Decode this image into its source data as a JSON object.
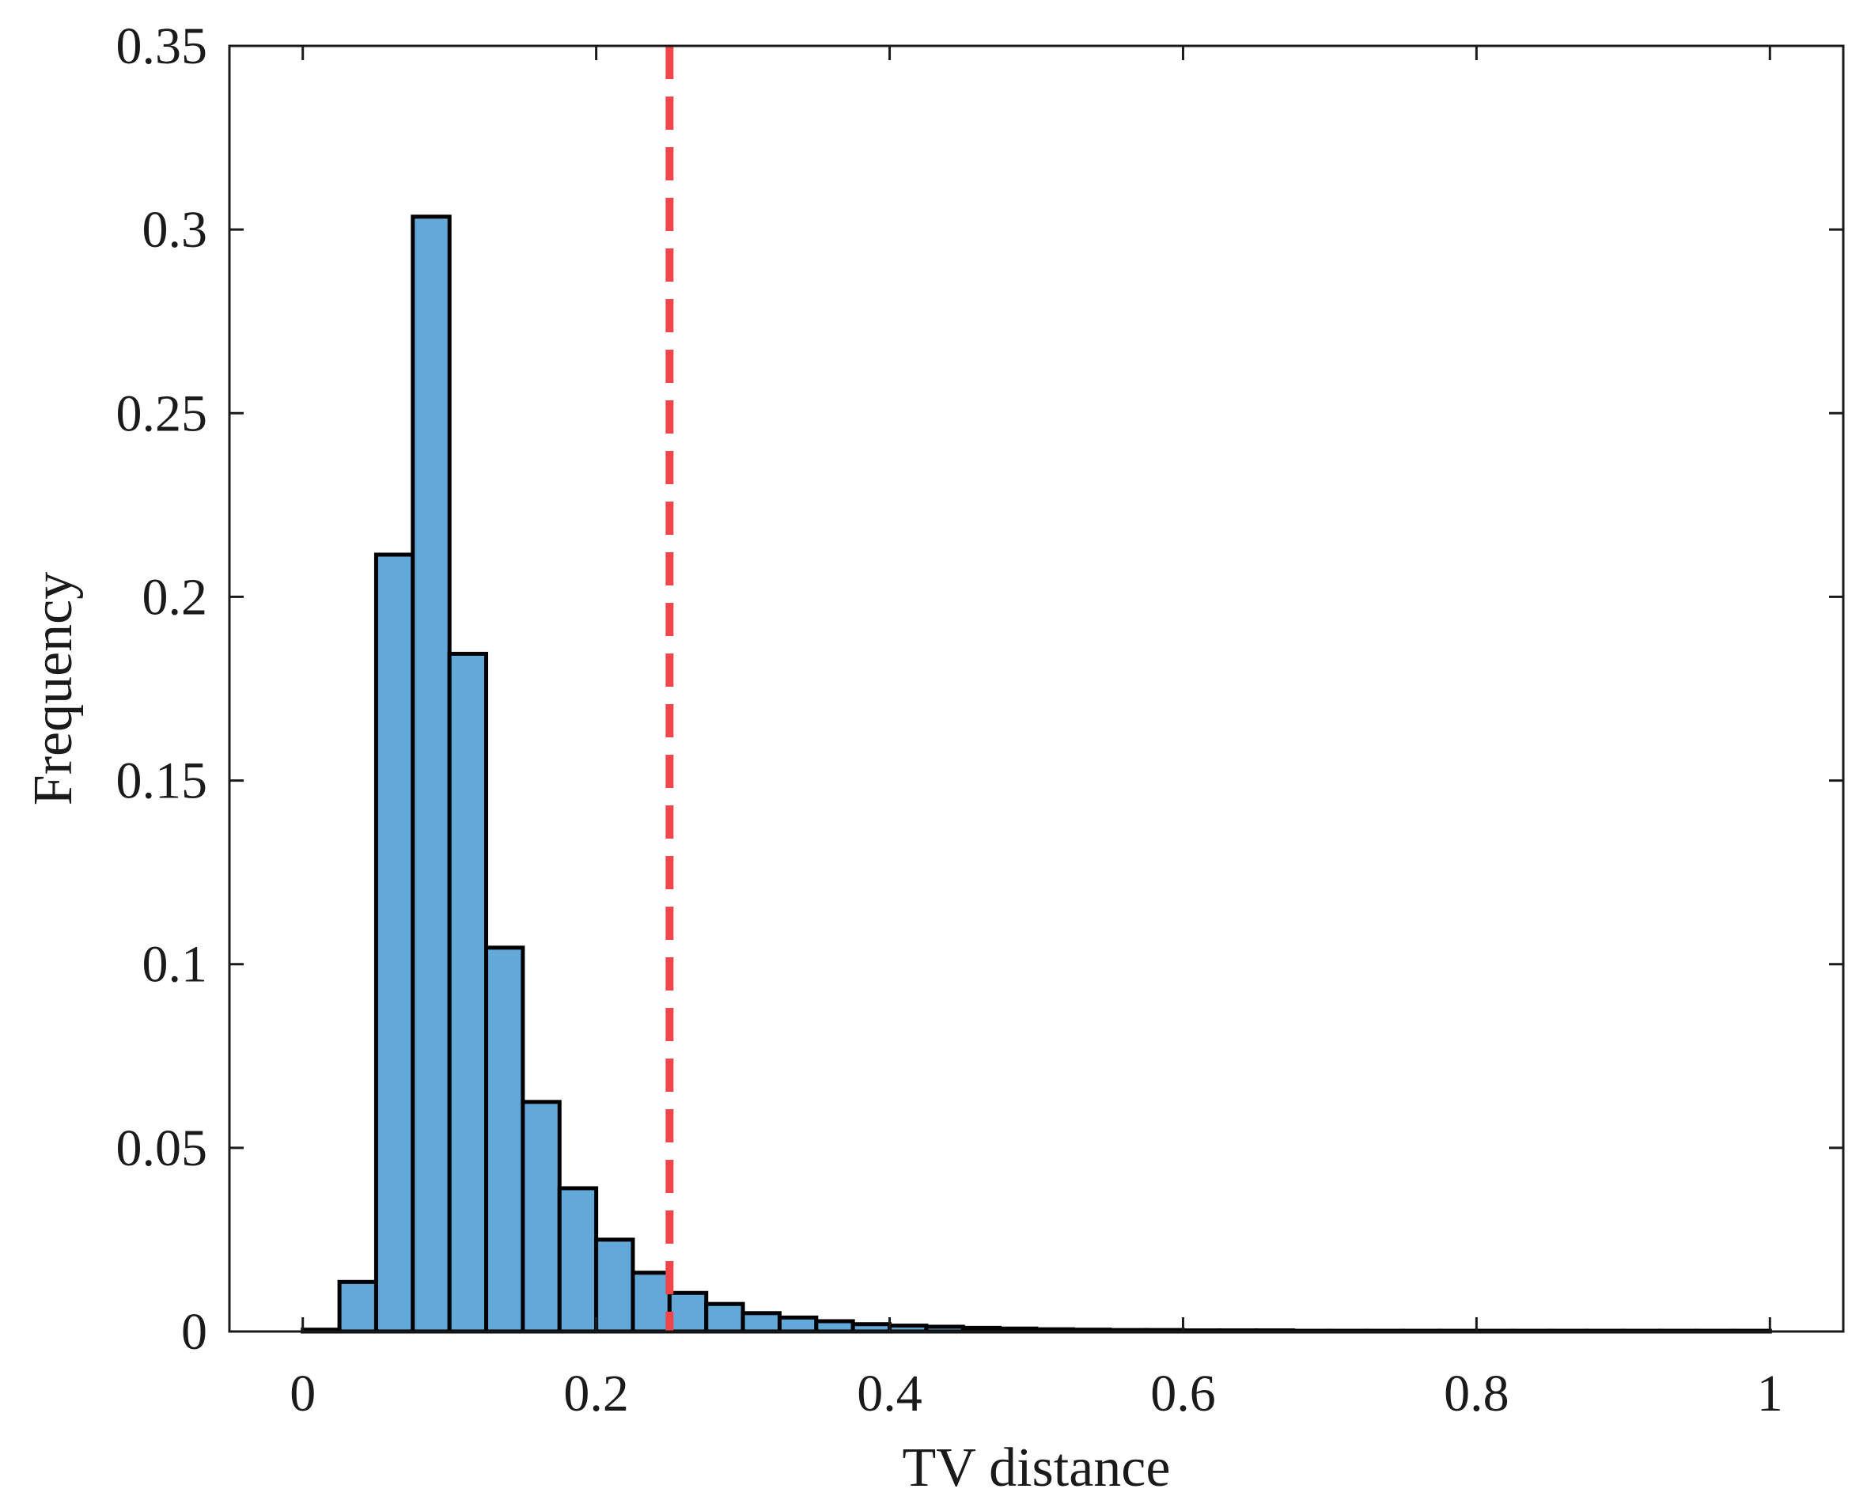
{
  "chart_data": {
    "type": "bar",
    "subtype": "histogram",
    "title": "",
    "xlabel": "TV distance",
    "ylabel": "Frequency",
    "xlim": [
      -0.05,
      1.05
    ],
    "ylim": [
      0,
      0.35
    ],
    "xticks": [
      0,
      0.2,
      0.4,
      0.6,
      0.8,
      1
    ],
    "xtick_labels": [
      "0",
      "0.2",
      "0.4",
      "0.6",
      "0.8",
      "1"
    ],
    "yticks": [
      0,
      0.05,
      0.1,
      0.15,
      0.2,
      0.25,
      0.3,
      0.35
    ],
    "ytick_labels": [
      "0",
      "0.05",
      "0.1",
      "0.15",
      "0.2",
      "0.25",
      "0.3",
      "0.35"
    ],
    "bin_width": 0.025,
    "bin_edges_start": 0,
    "values": [
      0.0005,
      0.0135,
      0.2115,
      0.3035,
      0.1845,
      0.1045,
      0.0625,
      0.039,
      0.025,
      0.016,
      0.0105,
      0.0075,
      0.005,
      0.0038,
      0.0028,
      0.002,
      0.0016,
      0.0013,
      0.001,
      0.0008,
      0.0006,
      0.0005,
      0.0004,
      0.0004,
      0.0003,
      0.0003,
      0.0003,
      0.0002,
      0.0002,
      0.0002,
      0.0002,
      0.0002,
      0.0002,
      0.0002,
      0.0002,
      0.0002,
      0.0002,
      0.0002,
      0.0002,
      0.0002
    ],
    "threshold": 0.25,
    "bar_color": "#62a8d8",
    "bar_edge_color": "#000000",
    "threshold_color": "#f0464a",
    "grid": false,
    "legend": "none"
  }
}
